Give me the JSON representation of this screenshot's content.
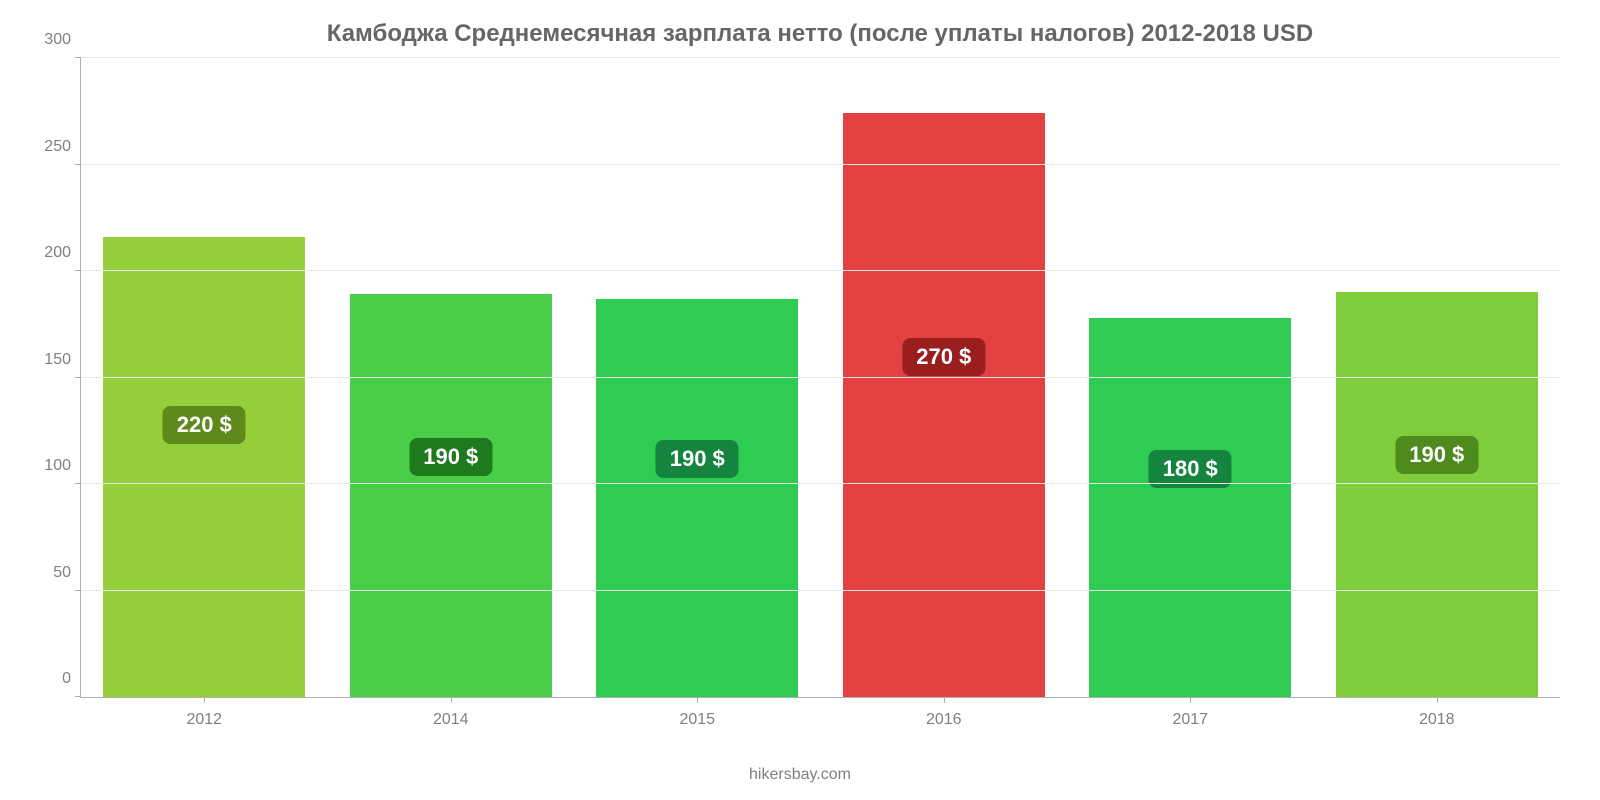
{
  "chart": {
    "type": "bar",
    "title": "Камбоджа Среднемесячная зарплата нетто (после уплаты налогов) 2012-2018 USD",
    "title_color": "#666666",
    "title_fontsize": 24,
    "credit": "hikersbay.com",
    "background_color": "#ffffff",
    "grid_color": "#e6e6e6",
    "axis_color": "#b0b0b0",
    "tick_font_color": "#808080",
    "tick_fontsize": 16,
    "y": {
      "min": 0,
      "max": 300,
      "step": 50,
      "ticks": [
        "0",
        "50",
        "100",
        "150",
        "200",
        "250",
        "300"
      ]
    },
    "bar_width_pct": 82,
    "label_fontsize": 22,
    "label_text_color": "#ffffff",
    "label_radius": 8,
    "label_y_from_bottom_pct": 55,
    "data": [
      {
        "category": "2012",
        "value": 216,
        "label": "220 $",
        "bar_color": "#96ce3b",
        "label_bg": "#5e8a1b"
      },
      {
        "category": "2014",
        "value": 189,
        "label": "190 $",
        "bar_color": "#49ce49",
        "label_bg": "#1d7a1d"
      },
      {
        "category": "2015",
        "value": 187,
        "label": "190 $",
        "bar_color": "#2ecc52",
        "label_bg": "#15843e"
      },
      {
        "category": "2016",
        "value": 274,
        "label": "270 $",
        "bar_color": "#e24242",
        "label_bg": "#9a1e1e"
      },
      {
        "category": "2017",
        "value": 178,
        "label": "180 $",
        "bar_color": "#2ecc52",
        "label_bg": "#15843e"
      },
      {
        "category": "2018",
        "value": 190,
        "label": "190 $",
        "bar_color": "#7fcc3c",
        "label_bg": "#4f8a1d"
      }
    ]
  }
}
